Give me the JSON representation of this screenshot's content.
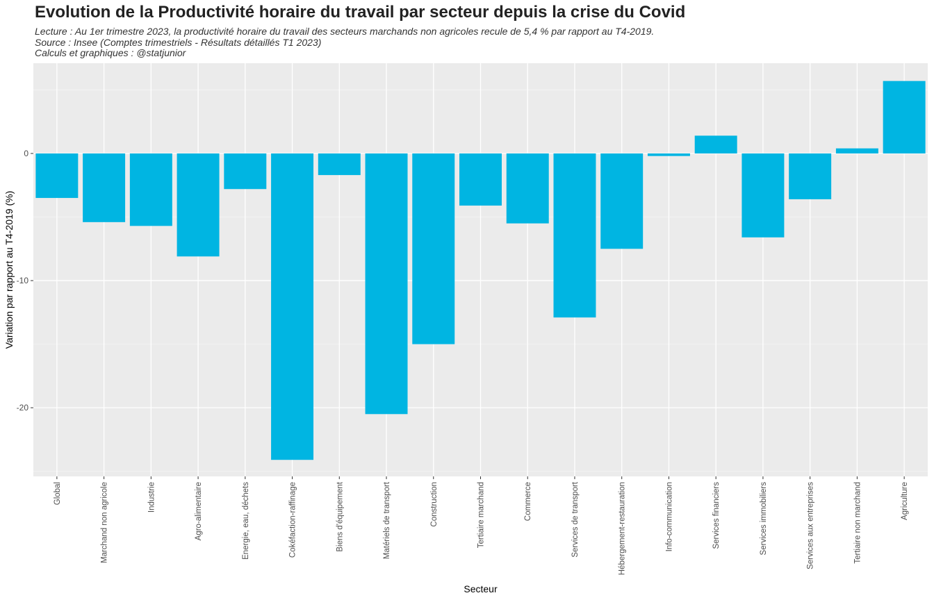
{
  "header": {
    "title": "Evolution de la Productivité horaire du travail par secteur depuis la crise du Covid",
    "subtitle_lines": [
      "Lecture : Au 1er trimestre 2023, la productivité horaire du travail des secteurs marchands non agricoles recule de 5,4 % par rapport au T4-2019.",
      "Source : Insee (Comptes trimestriels - Résultats détaillés T1 2023)",
      "Calculs et graphiques : @statjunior"
    ]
  },
  "colors": {
    "bar": "#00B5E2",
    "panel": "#EBEBEB",
    "grid_major": "#FFFFFF",
    "grid_minor": "#F5F5F5"
  },
  "chart_data": {
    "type": "bar",
    "title": "Evolution de la Productivité horaire du travail par secteur depuis la crise du Covid",
    "xlabel": "Secteur",
    "ylabel": "Variation par rapport au T4-2019 (%)",
    "categories": [
      "Global",
      "Marchand non agricole",
      "Industrie",
      "Agro-alimentaire",
      "Energie, eau, déchets",
      "Cokéfaction-raffinage",
      "Biens d'équipement",
      "Matériels de transport",
      "Construction",
      "Tertiaire marchand",
      "Commerce",
      "Services de transport",
      "Hébergement-restauration",
      "Info-communication",
      "Services financiers",
      "Services immobiliers",
      "Services aux entreprises",
      "Tertiaire non marchand",
      "Agriculture"
    ],
    "values": [
      -3.5,
      -5.4,
      -5.7,
      -8.1,
      -2.8,
      -24.1,
      -1.7,
      -20.5,
      -15.0,
      -4.1,
      -5.5,
      -12.9,
      -7.5,
      -0.2,
      1.4,
      -6.6,
      -3.6,
      0.4,
      5.7
    ],
    "yticks": [
      0,
      -10,
      -20
    ],
    "ylim": [
      -25.4,
      7.1
    ],
    "grid": true,
    "legend": "none"
  }
}
